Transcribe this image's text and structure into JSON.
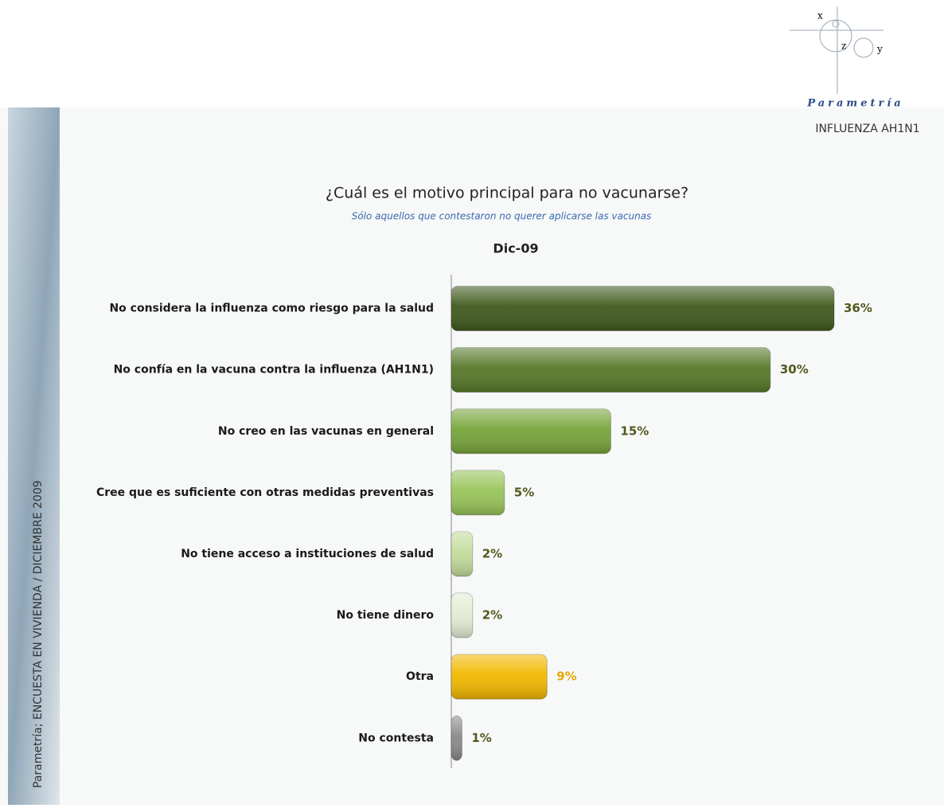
{
  "logo": {
    "x": "x",
    "z": "z",
    "y": "y",
    "name": "Parametría"
  },
  "header": {
    "topic": "INFLUENZA AH1N1",
    "side_note": "Parametría; ENCUESTA EN VIVIENDA / DICIEMBRE 2009"
  },
  "chart_data": {
    "type": "bar",
    "orientation": "horizontal",
    "title": "¿Cuál es el motivo principal para no vacunarse?",
    "subtitle": "Sólo aquellos que contestaron no querer aplicarse las vacunas",
    "series_label": "Dic-09",
    "categories": [
      "No considera la influenza como riesgo para la salud",
      "No confía en la vacuna contra la influenza (AH1N1)",
      "No creo en las vacunas en general",
      "Cree que es suficiente con otras medidas preventivas",
      "No tiene acceso a instituciones de salud",
      "No tiene dinero",
      "Otra",
      "No contesta"
    ],
    "values": [
      36,
      30,
      15,
      5,
      2,
      2,
      9,
      1
    ],
    "value_labels": [
      "36%",
      "30%",
      "15%",
      "5%",
      "2%",
      "2%",
      "9%",
      "1%"
    ],
    "colors": [
      "#3f5a1c",
      "#56792a",
      "#77a53a",
      "#98c45a",
      "#c4dc9c",
      "#e3ecd2",
      "#f2b800",
      "#8a8a8a"
    ],
    "label_colors": [
      "#4f5a1e",
      "#4f5a1e",
      "#4f5a1e",
      "#4f5a1e",
      "#4f5a1e",
      "#4f5a1e",
      "#e6a800",
      "#4f5a1e"
    ]
  }
}
